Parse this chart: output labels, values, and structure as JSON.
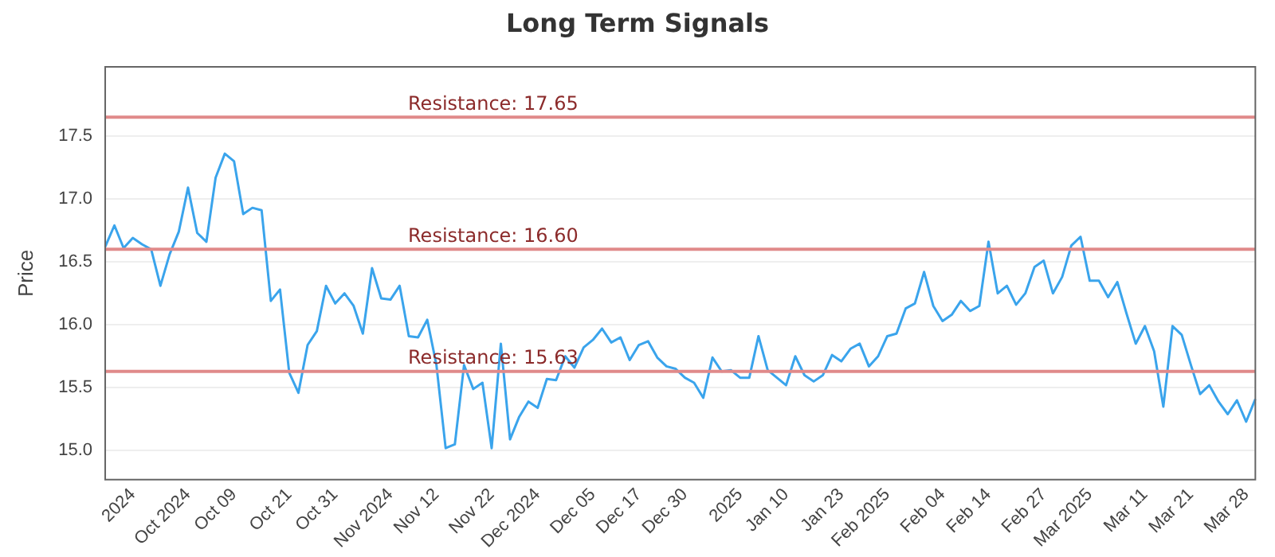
{
  "chart_data": {
    "type": "line",
    "title": "Long Term Signals",
    "ylabel": "Price",
    "categories": [
      null,
      null,
      null,
      "2024",
      null,
      null,
      null,
      null,
      null,
      "Oct 2024",
      null,
      null,
      null,
      null,
      "Oct 09",
      null,
      null,
      null,
      null,
      null,
      "Oct 21",
      null,
      null,
      null,
      null,
      "Oct 31",
      null,
      null,
      null,
      null,
      null,
      "Nov 2024",
      null,
      null,
      null,
      null,
      "Nov 12",
      null,
      null,
      null,
      null,
      null,
      "Nov 22",
      null,
      null,
      null,
      null,
      "Dec 2024",
      null,
      null,
      null,
      null,
      null,
      "Dec 05",
      null,
      null,
      null,
      null,
      "Dec 17",
      null,
      null,
      null,
      null,
      "Dec 30",
      null,
      null,
      null,
      null,
      null,
      "2025",
      null,
      null,
      null,
      null,
      "Jan 10",
      null,
      null,
      null,
      null,
      null,
      "Jan 23",
      null,
      null,
      null,
      null,
      "Feb 2025",
      null,
      null,
      null,
      null,
      null,
      "Feb 04",
      null,
      null,
      null,
      null,
      "Feb 14",
      null,
      null,
      null,
      null,
      null,
      "Feb 27",
      null,
      null,
      null,
      null,
      "Mar 2025",
      null,
      null,
      null,
      null,
      null,
      "Mar 11",
      null,
      null,
      null,
      null,
      "Mar 21",
      null,
      null,
      null,
      null,
      null,
      "Mar 28",
      null
    ],
    "series": [
      {
        "color": "#3aa4ec",
        "values": [
          16.62,
          16.79,
          16.61,
          16.69,
          16.64,
          16.6,
          16.31,
          16.56,
          16.74,
          17.09,
          16.73,
          16.66,
          17.17,
          17.36,
          17.3,
          16.88,
          16.93,
          16.91,
          16.19,
          16.28,
          15.62,
          15.46,
          15.84,
          15.95,
          16.31,
          16.17,
          16.25,
          16.15,
          15.93,
          16.45,
          16.21,
          16.2,
          16.31,
          15.91,
          15.9,
          16.04,
          15.68,
          15.02,
          15.05,
          15.68,
          15.49,
          15.54,
          15.02,
          15.85,
          15.09,
          15.27,
          15.39,
          15.34,
          15.57,
          15.56,
          15.75,
          15.66,
          15.82,
          15.88,
          15.97,
          15.86,
          15.9,
          15.72,
          15.84,
          15.87,
          15.74,
          15.67,
          15.65,
          15.58,
          15.54,
          15.42,
          15.74,
          15.63,
          15.64,
          15.58,
          15.58,
          15.91,
          15.64,
          15.58,
          15.52,
          15.75,
          15.6,
          15.55,
          15.6,
          15.76,
          15.71,
          15.81,
          15.85,
          15.67,
          15.75,
          15.91,
          15.93,
          16.13,
          16.17,
          16.42,
          16.15,
          16.03,
          16.08,
          16.19,
          16.11,
          16.15,
          16.66,
          16.25,
          16.31,
          16.16,
          16.25,
          16.46,
          16.51,
          16.25,
          16.38,
          16.63,
          16.7,
          16.35,
          16.35,
          16.22,
          16.34,
          16.09,
          15.85,
          15.99,
          15.79,
          15.35,
          15.99,
          15.92,
          15.68,
          15.45,
          15.52,
          15.39,
          15.29,
          15.4,
          15.23,
          15.41
        ]
      }
    ],
    "ylim": [
      14.77,
      18.05
    ],
    "yticks": [
      {
        "value": 15,
        "label": "15.0"
      },
      {
        "value": 15.5,
        "label": "15.5"
      },
      {
        "value": 16,
        "label": "16.0"
      },
      {
        "value": 16.5,
        "label": "16.5"
      },
      {
        "value": 17,
        "label": "17.0"
      },
      {
        "value": 17.5,
        "label": "17.5"
      }
    ],
    "ref_lines": [
      {
        "axis": "y",
        "value": 17.65,
        "label": "Resistance: 17.65",
        "color": "#e08a8a"
      },
      {
        "axis": "y",
        "value": 16.6,
        "label": "Resistance: 16.60",
        "color": "#e08a8a"
      },
      {
        "axis": "y",
        "value": 15.63,
        "label": "Resistance: 15.63",
        "color": "#e08a8a"
      }
    ],
    "grid": "y",
    "legend": false,
    "marker": "none",
    "line_style": "solid"
  }
}
